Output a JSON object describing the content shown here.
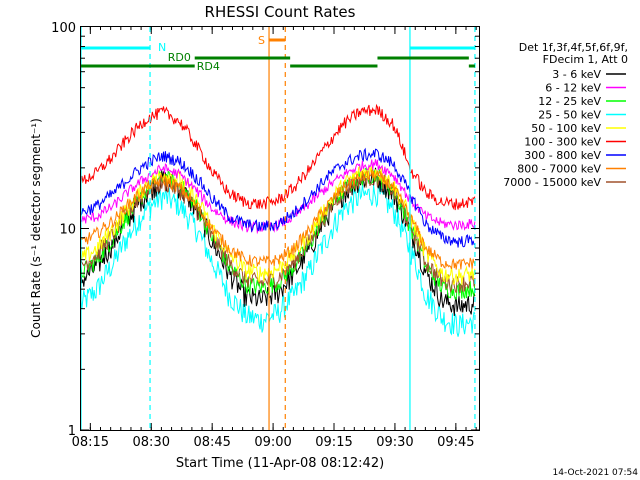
{
  "chart_data": {
    "type": "line",
    "title": "RHESSI Count Rates",
    "xlabel": "Start Time (11-Apr-08 08:12:42)",
    "ylabel": "Count Rate (s⁻¹ detector segment⁻¹)",
    "yscale": "log",
    "ylim": [
      1,
      100
    ],
    "xlim_minutes": [
      0,
      98
    ],
    "x_ticks": [
      {
        "label": "08:15",
        "minute": 2.3
      },
      {
        "label": "08:30",
        "minute": 17.3
      },
      {
        "label": "08:45",
        "minute": 32.3
      },
      {
        "label": "09:00",
        "minute": 47.3
      },
      {
        "label": "09:15",
        "minute": 62.3
      },
      {
        "label": "09:30",
        "minute": 77.3
      },
      {
        "label": "09:45",
        "minute": 92.3
      }
    ],
    "y_tick_labels": [
      {
        "label": "1",
        "value": 1
      },
      {
        "label": "10",
        "value": 10
      },
      {
        "label": "100",
        "value": 100
      }
    ],
    "legend_header": [
      "Det 1f,3f,4f,5f,6f,9f,",
      "FDecim 1, Att 0"
    ],
    "series": [
      {
        "name": "3 - 6 keV",
        "color": "#000000",
        "values": [
          5.5,
          6.5,
          8.5,
          11.5,
          15,
          17.5,
          16,
          12.5,
          8.5,
          6,
          4.6,
          4.4,
          4.8,
          6,
          8,
          11.5,
          15,
          17.5,
          18,
          15,
          10,
          6,
          4.4,
          4.1,
          4.3
        ]
      },
      {
        "name": "6 - 12 keV",
        "color": "#ff00ff",
        "values": [
          11,
          11.5,
          13,
          15.5,
          18,
          20,
          18.5,
          15.5,
          12.5,
          11,
          10.2,
          10.1,
          10.4,
          11.5,
          13.5,
          16,
          18.5,
          20.5,
          21,
          18.5,
          14,
          11.5,
          10.6,
          10.4,
          10.6
        ]
      },
      {
        "name": "12 - 25 keV",
        "color": "#00ff00",
        "values": [
          6,
          7,
          9,
          12,
          15.5,
          18,
          16.5,
          13,
          9,
          6.5,
          5.3,
          5.1,
          5.4,
          6.5,
          8.5,
          12,
          15.5,
          18,
          18.5,
          15.5,
          10.5,
          6.5,
          5.1,
          4.9,
          5.1
        ]
      },
      {
        "name": "25 - 50 keV",
        "color": "#00ffff",
        "values": [
          4.2,
          5,
          6.8,
          9.5,
          12.5,
          14.5,
          13,
          10,
          6.8,
          4.7,
          3.7,
          3.5,
          3.8,
          4.7,
          6.3,
          9,
          12.5,
          14.5,
          15,
          12.5,
          8,
          4.7,
          3.6,
          3.3,
          3.5
        ]
      },
      {
        "name": "50 - 100 keV",
        "color": "#ffff00",
        "values": [
          7,
          8,
          10,
          13,
          16.5,
          19,
          17.5,
          14,
          10,
          7.5,
          6.2,
          6,
          6.3,
          7.5,
          9.5,
          13,
          16.5,
          19,
          19.5,
          16.5,
          11.5,
          7.5,
          6,
          5.8,
          6
        ]
      },
      {
        "name": "100 - 300 keV",
        "color": "#ff0000",
        "values": [
          17,
          19,
          23,
          29,
          35,
          38,
          34,
          26,
          19,
          15,
          13.5,
          13.2,
          13.8,
          16,
          20,
          26,
          33,
          38,
          39,
          33,
          20,
          15,
          13.5,
          13.2,
          13.8
        ]
      },
      {
        "name": "300 - 800 keV",
        "color": "#0000ff",
        "values": [
          12,
          13,
          15,
          18,
          21,
          23,
          21.5,
          18,
          14,
          11.5,
          10.5,
          10.2,
          10.5,
          12,
          14.5,
          18,
          21,
          23,
          23.5,
          21,
          15,
          10.5,
          9,
          8.6,
          8.8
        ]
      },
      {
        "name": "800 - 7000 keV",
        "color": "#ff8000",
        "values": [
          8.5,
          9.5,
          11,
          13.5,
          16,
          17.5,
          16,
          13,
          10,
          8,
          7,
          6.8,
          7,
          8,
          10,
          13,
          16,
          18,
          18.5,
          16,
          11.5,
          8,
          6.8,
          6.6,
          6.8
        ]
      },
      {
        "name": "7000 - 15000 keV",
        "color": "#a0522d",
        "values": [
          6.5,
          7.5,
          9.5,
          12.5,
          15.5,
          17,
          15.5,
          12.5,
          9,
          6.8,
          5.6,
          5.4,
          5.7,
          6.8,
          8.8,
          12,
          15.5,
          17.5,
          18,
          15.5,
          10.5,
          6.8,
          5.5,
          5.3,
          5.5
        ]
      }
    ],
    "annotations": {
      "N": {
        "label": "N",
        "color": "#00ffff",
        "bars": [
          [
            0,
            17
          ],
          [
            81,
            97
          ]
        ],
        "dashed_lines_min": [
          17,
          97
        ],
        "solid_lines_min": [
          0,
          81
        ]
      },
      "S": {
        "label": "S",
        "color": "#ff8000",
        "bar": [
          46.3,
          50.3
        ],
        "solid_line_min": 46.3,
        "dashed_line_min": 50.3
      },
      "RD0": {
        "label": "RD0",
        "color": "#008000",
        "segments": [
          [
            28,
            51.5
          ],
          [
            73,
            95.5
          ]
        ]
      },
      "RD4": {
        "label": "RD4",
        "color": "#008000",
        "segments": [
          [
            0,
            28
          ],
          [
            51.5,
            73
          ],
          [
            95.5,
            97
          ]
        ]
      }
    }
  },
  "footer": {
    "timestamp": "14-Oct-2021 07:54"
  }
}
